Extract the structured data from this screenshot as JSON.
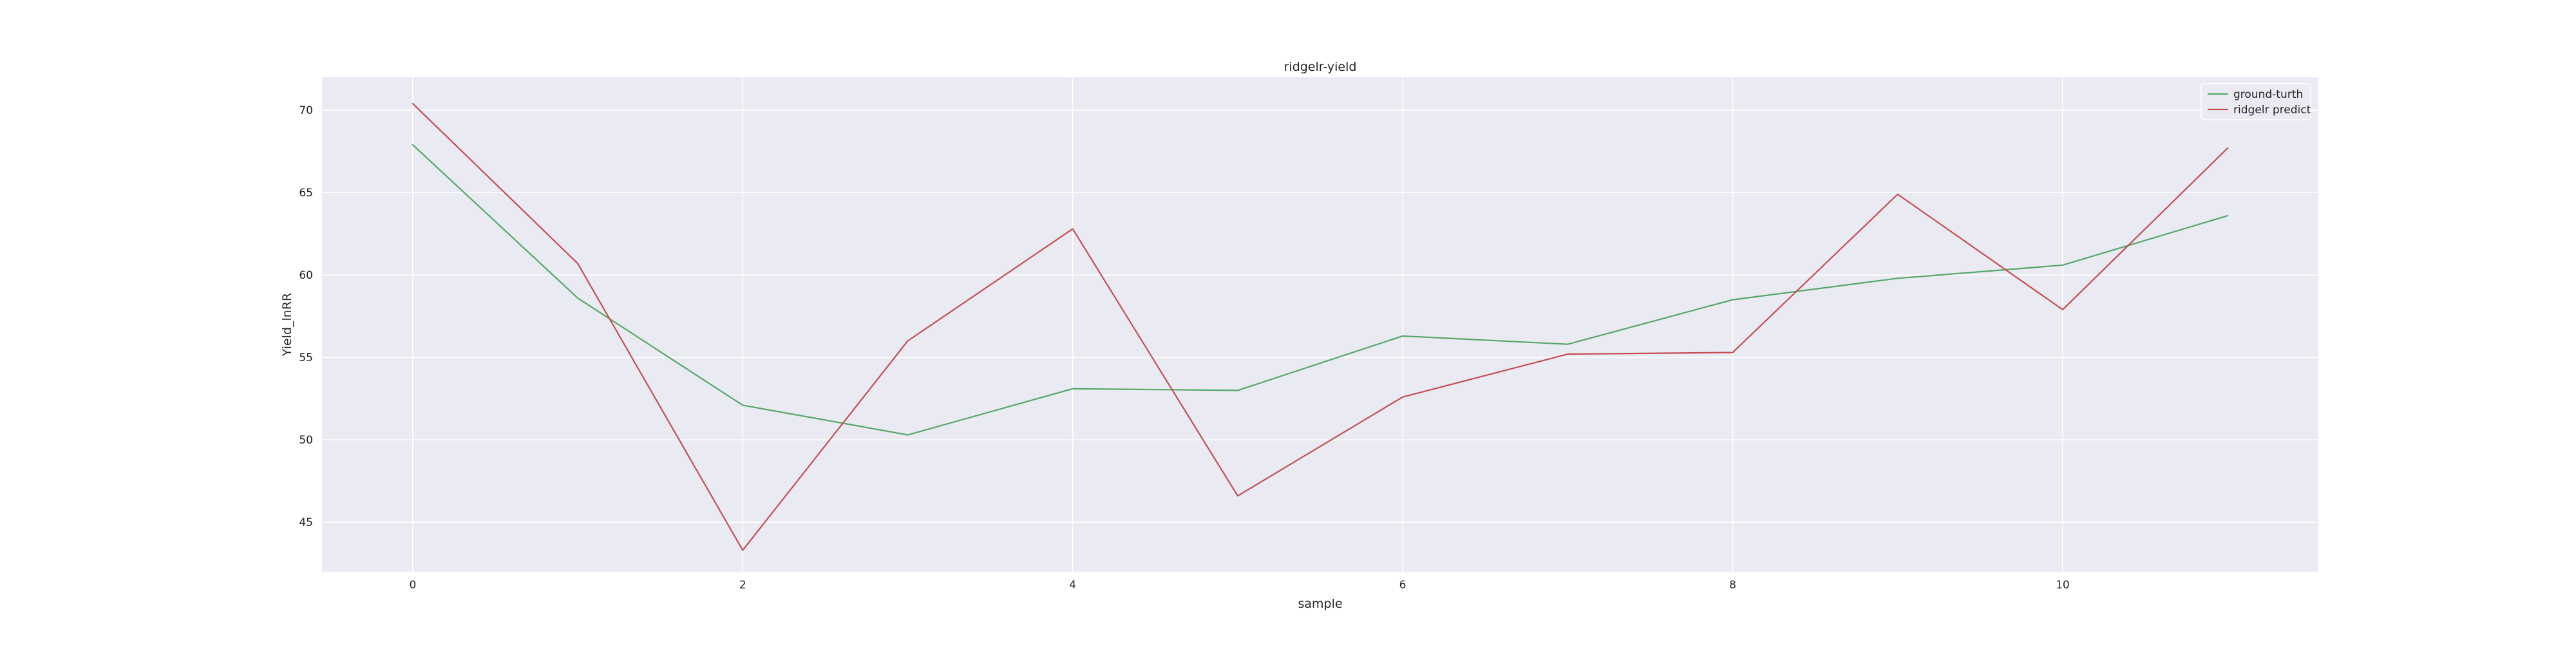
{
  "chart_data": {
    "type": "line",
    "title": "ridgelr-yield",
    "xlabel": "sample",
    "ylabel": "Yield_lnRR",
    "x": [
      0,
      1,
      2,
      3,
      4,
      5,
      6,
      7,
      8,
      9,
      10,
      11
    ],
    "xlim": [
      -0.55,
      11.55
    ],
    "ylim": [
      42,
      72
    ],
    "xticks": [
      0,
      2,
      4,
      6,
      8,
      10
    ],
    "yticks": [
      45,
      50,
      55,
      60,
      65,
      70
    ],
    "grid": true,
    "legend_position": "top-right",
    "background": "#eaeaf2",
    "series": [
      {
        "name": "ground-turth",
        "color": "#55a868",
        "values": [
          67.9,
          58.6,
          52.1,
          50.3,
          53.1,
          53.0,
          56.3,
          55.8,
          58.5,
          59.8,
          60.6,
          63.6
        ]
      },
      {
        "name": "ridgelr predict",
        "color": "#c44e52",
        "values": [
          70.4,
          60.7,
          43.3,
          56.0,
          62.8,
          46.6,
          52.6,
          55.2,
          55.3,
          64.9,
          57.9,
          67.7
        ]
      }
    ]
  }
}
